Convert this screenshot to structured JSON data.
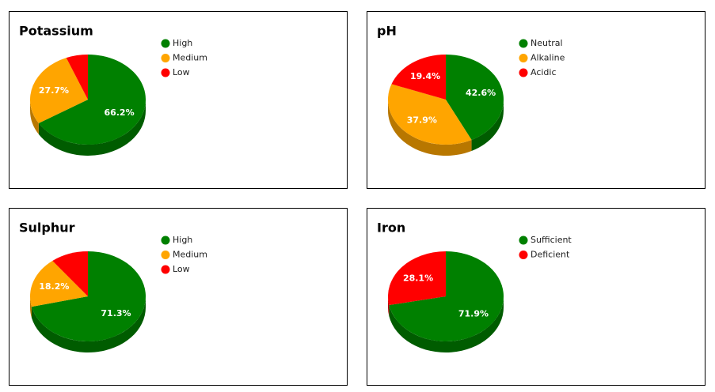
{
  "chart_data": [
    {
      "type": "pie",
      "title": "Potassium",
      "categories": [
        "High",
        "Medium",
        "Low"
      ],
      "values": [
        66.2,
        27.7,
        6.1
      ],
      "value_labels": [
        "66.2%",
        "27.7%",
        null
      ],
      "colors": [
        "#008000",
        "#ffa500",
        "#ff0000"
      ]
    },
    {
      "type": "pie",
      "title": "pH",
      "categories": [
        "Neutral",
        "Alkaline",
        "Acidic"
      ],
      "values": [
        42.6,
        37.9,
        19.4
      ],
      "value_labels": [
        "42.6%",
        "37.9%",
        "19.4%"
      ],
      "colors": [
        "#008000",
        "#ffa500",
        "#ff0000"
      ]
    },
    {
      "type": "pie",
      "title": "Sulphur",
      "categories": [
        "High",
        "Medium",
        "Low"
      ],
      "values": [
        71.3,
        18.2,
        10.5
      ],
      "value_labels": [
        "71.3%",
        "18.2%",
        null
      ],
      "colors": [
        "#008000",
        "#ffa500",
        "#ff0000"
      ]
    },
    {
      "type": "pie",
      "title": "Iron",
      "categories": [
        "Sufficient",
        "Deficient"
      ],
      "values": [
        71.9,
        28.1
      ],
      "value_labels": [
        "71.9%",
        "28.1%"
      ],
      "colors": [
        "#008000",
        "#ff0000"
      ]
    }
  ]
}
